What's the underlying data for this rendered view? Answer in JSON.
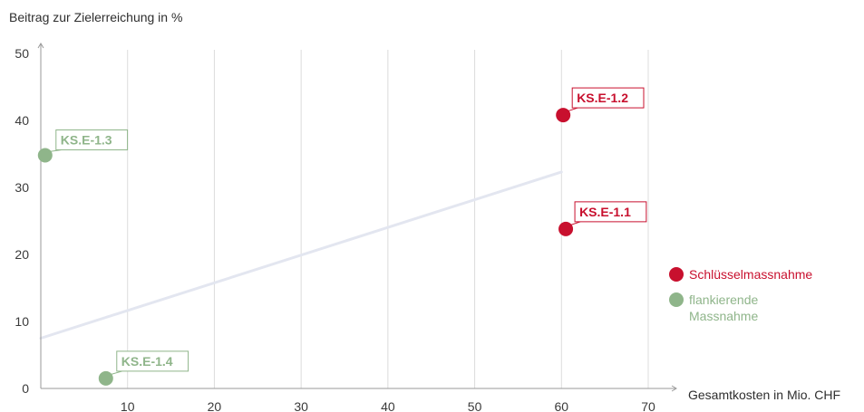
{
  "colors": {
    "key": "#c8102e",
    "flanking": "#8fb58a",
    "trend": "#e3e6f0",
    "grid": "#dcdcdc",
    "axis": "#9a9a9a"
  },
  "chart_data": {
    "type": "scatter",
    "ylabel": "Beitrag zur Zielerreichung in %",
    "xlabel": "Gesamtkosten in Mio. CHF",
    "xlim": [
      0,
      70
    ],
    "ylim": [
      0,
      50
    ],
    "x_ticks": [
      "10",
      "20",
      "30",
      "40",
      "50",
      "60",
      "70"
    ],
    "y_ticks": [
      "0",
      "10",
      "20",
      "30",
      "40",
      "50"
    ],
    "grid": "vertical",
    "legend_position": "right",
    "series": [
      {
        "name": "Schlüsselmassnahme",
        "color": "#c8102e",
        "points": [
          {
            "label": "KS.E-1.2",
            "x": 60.2,
            "y": 40.8
          },
          {
            "label": "KS.E-1.1",
            "x": 60.5,
            "y": 23.8
          }
        ]
      },
      {
        "name": "flankierende\nMassnahme",
        "color": "#8fb58a",
        "points": [
          {
            "label": "KS.E-1.3",
            "x": 0.5,
            "y": 34.8
          },
          {
            "label": "KS.E-1.4",
            "x": 7.5,
            "y": 1.5
          }
        ]
      }
    ],
    "trendline": {
      "x": [
        0,
        60
      ],
      "y": [
        7.5,
        32.3
      ]
    }
  }
}
